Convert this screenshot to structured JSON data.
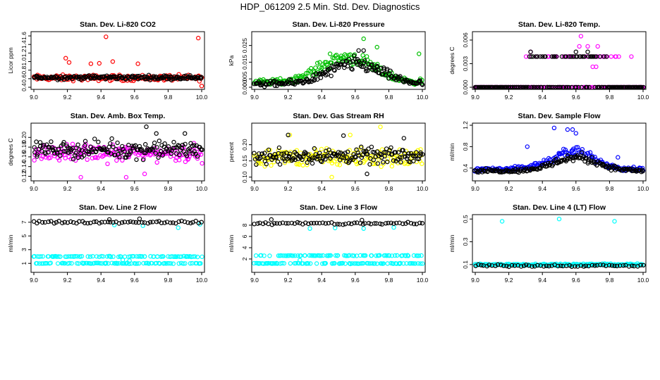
{
  "figure": {
    "title": "HDP_061209  2.5 Min. Std. Dev. Diagnostics",
    "x_ticks": [
      "9.0",
      "9.2",
      "9.4",
      "9.6",
      "9.8",
      "10.0"
    ]
  },
  "colors": {
    "black": "#000000",
    "red": "#ff0000",
    "green": "#00c000",
    "magenta": "#ff00ff",
    "yellow": "#ffff00",
    "blue": "#0000ff",
    "cyan": "#00ffff"
  },
  "chart_data": [
    {
      "type": "scatter",
      "title": "Stan. Dev. Li-820 CO2",
      "ylabel": "Licor ppm",
      "xlim": [
        9.0,
        10.0
      ],
      "ylim": [
        0.4,
        1.65
      ],
      "y_ticks": [
        0.4,
        0.6,
        0.8,
        1.0,
        1.2,
        1.4,
        1.6
      ],
      "y_tick_labels": [
        "0.4",
        "0.6",
        "0.8",
        "1.0",
        "1.2",
        "1.4",
        "1.6"
      ],
      "series": [
        {
          "name": "red",
          "color": "red",
          "pattern": "band",
          "y_base": 0.62,
          "y_spread": 0.1,
          "outliers": [
            [
              9.19,
              1.08
            ],
            [
              9.21,
              0.98
            ],
            [
              9.34,
              0.95
            ],
            [
              9.39,
              0.96
            ],
            [
              9.43,
              1.58
            ],
            [
              9.47,
              1.0
            ],
            [
              9.62,
              0.95
            ],
            [
              9.98,
              1.55
            ],
            [
              10.0,
              0.43
            ]
          ]
        },
        {
          "name": "black",
          "color": "black",
          "pattern": "band",
          "y_base": 0.63,
          "y_spread": 0.07
        }
      ]
    },
    {
      "type": "scatter",
      "title": "Stan. Dev. Li-820 Pressure",
      "ylabel": "kPa",
      "xlim": [
        9.0,
        10.0
      ],
      "ylim": [
        0.0,
        0.032
      ],
      "y_ticks": [
        0.0,
        0.005,
        0.015,
        0.025
      ],
      "y_tick_labels": [
        "0.000",
        "0.005",
        "0.015",
        "0.025"
      ],
      "series": [
        {
          "name": "green",
          "color": "green",
          "pattern": "hump",
          "y_base": 0.003,
          "y_peak": 0.015,
          "y_spread": 0.004,
          "x_center": 9.55,
          "x_width": 0.22,
          "outliers": [
            [
              9.65,
              0.029
            ],
            [
              9.73,
              0.024
            ],
            [
              9.98,
              0.02
            ],
            [
              9.45,
              0.02
            ]
          ]
        },
        {
          "name": "black",
          "color": "black",
          "pattern": "hump",
          "y_base": 0.002,
          "y_peak": 0.012,
          "y_spread": 0.004,
          "x_center": 9.6,
          "x_width": 0.22,
          "outliers": [
            [
              9.62,
              0.022
            ],
            [
              9.65,
              0.022
            ]
          ]
        }
      ]
    },
    {
      "type": "scatter",
      "title": "Stan. Dev. Li-820 Temp.",
      "ylabel": "degrees C",
      "xlim": [
        9.0,
        10.0
      ],
      "ylim": [
        0.0,
        0.0068
      ],
      "y_ticks": [
        0.0,
        0.003,
        0.006
      ],
      "y_tick_labels": [
        "0.000",
        "0.003",
        "0.006"
      ],
      "series": [
        {
          "name": "magenta",
          "color": "magenta",
          "pattern": "levels",
          "levels": [
            0.0,
            0.0039
          ],
          "level_range": [
            9.3,
            9.95
          ],
          "outliers": [
            [
              9.63,
              0.0065
            ],
            [
              9.7,
              0.0026
            ],
            [
              9.72,
              0.0026
            ],
            [
              9.33,
              0.0045
            ],
            [
              9.62,
              0.0052
            ],
            [
              9.67,
              0.0052
            ],
            [
              9.73,
              0.0052
            ]
          ]
        },
        {
          "name": "black",
          "color": "black",
          "pattern": "levels",
          "levels": [
            0.0,
            0.0039
          ],
          "level_range": [
            9.32,
            9.8
          ],
          "outliers": [
            [
              9.33,
              0.0045
            ],
            [
              9.6,
              0.0045
            ],
            [
              9.67,
              0.0045
            ]
          ]
        }
      ]
    },
    {
      "type": "scatter",
      "title": "Stan. Dev. Amb. Box Temp.",
      "ylabel": "degrees C",
      "xlim": [
        9.0,
        10.0
      ],
      "ylim": [
        0.115,
        0.225
      ],
      "y_ticks": [
        0.12,
        0.14,
        0.16,
        0.18,
        0.2
      ],
      "y_tick_labels": [
        "0.12",
        "0.14",
        "0.16",
        "0.18",
        "0.20"
      ],
      "series": [
        {
          "name": "magenta",
          "color": "magenta",
          "pattern": "band",
          "y_base": 0.168,
          "y_spread": 0.025,
          "outliers": [
            [
              9.28,
              0.118
            ],
            [
              9.55,
              0.118
            ],
            [
              9.66,
              0.125
            ]
          ]
        },
        {
          "name": "black",
          "color": "black",
          "pattern": "band",
          "y_base": 0.175,
          "y_spread": 0.025,
          "outliers": [
            [
              9.67,
              0.222
            ],
            [
              9.73,
              0.208
            ],
            [
              9.9,
              0.208
            ]
          ]
        }
      ]
    },
    {
      "type": "scatter",
      "title": "Stan. Dev. Gas Stream RH",
      "ylabel": "percent",
      "xlim": [
        9.0,
        10.0
      ],
      "ylim": [
        0.095,
        0.26
      ],
      "y_ticks": [
        0.1,
        0.15,
        0.2
      ],
      "y_tick_labels": [
        "0.10",
        "0.15",
        "0.20"
      ],
      "series": [
        {
          "name": "yellow",
          "color": "yellow",
          "pattern": "band",
          "y_base": 0.16,
          "y_spread": 0.04,
          "outliers": [
            [
              9.75,
              0.255
            ],
            [
              9.46,
              0.1
            ],
            [
              9.21,
              0.23
            ],
            [
              9.57,
              0.23
            ]
          ]
        },
        {
          "name": "black",
          "color": "black",
          "pattern": "band",
          "y_base": 0.165,
          "y_spread": 0.035,
          "outliers": [
            [
              9.2,
              0.23
            ],
            [
              9.53,
              0.228
            ],
            [
              9.89,
              0.22
            ],
            [
              9.67,
              0.11
            ]
          ]
        }
      ]
    },
    {
      "type": "scatter",
      "title": "Stan. Dev. Sample Flow",
      "ylabel": "ml/min",
      "xlim": [
        9.0,
        10.0
      ],
      "ylim": [
        0.2,
        1.2
      ],
      "y_ticks": [
        0.4,
        0.8,
        1.2
      ],
      "y_tick_labels": [
        "0.4",
        "0.8",
        "1.2"
      ],
      "series": [
        {
          "name": "blue",
          "color": "blue",
          "pattern": "hump",
          "y_base": 0.38,
          "y_peak": 0.32,
          "y_spread": 0.09,
          "x_center": 9.58,
          "x_width": 0.18,
          "outliers": [
            [
              9.47,
              1.15
            ],
            [
              9.55,
              1.12
            ],
            [
              9.58,
              1.12
            ],
            [
              9.6,
              1.05
            ],
            [
              9.31,
              0.8
            ],
            [
              9.85,
              0.6
            ]
          ]
        },
        {
          "name": "black",
          "color": "black",
          "pattern": "hump",
          "y_base": 0.35,
          "y_spread": 0.08,
          "y_peak": 0.25,
          "x_center": 9.6,
          "x_width": 0.18
        }
      ]
    },
    {
      "type": "scatter",
      "title": "Stan. Dev. Line 2 Flow",
      "ylabel": "ml/min",
      "xlim": [
        9.0,
        10.0
      ],
      "ylim": [
        0.0,
        7.8
      ],
      "y_ticks": [
        1,
        3,
        5,
        7
      ],
      "y_tick_labels": [
        "1",
        "3",
        "5",
        "7"
      ],
      "series": [
        {
          "name": "cyan",
          "color": "cyan",
          "pattern": "levels",
          "levels": [
            1.0,
            2.0
          ],
          "level_range": [
            9.0,
            10.0
          ],
          "outliers": [
            [
              9.48,
              6.6
            ],
            [
              9.65,
              6.5
            ],
            [
              9.86,
              6.2
            ],
            [
              9.99,
              6.7
            ],
            [
              9.53,
              1.5
            ],
            [
              9.57,
              1.4
            ]
          ]
        },
        {
          "name": "black",
          "color": "black",
          "pattern": "band",
          "y_base": 7.0,
          "y_spread": 0.25,
          "sparse": true,
          "outliers": [
            [
              9.45,
              7.4
            ],
            [
              9.63,
              7.5
            ]
          ]
        }
      ]
    },
    {
      "type": "scatter",
      "title": "Stan. Dev. Line 3 Flow",
      "ylabel": "ml/min",
      "xlim": [
        9.0,
        10.0
      ],
      "ylim": [
        0.0,
        9.5
      ],
      "y_ticks": [
        2,
        4,
        6,
        8
      ],
      "y_tick_labels": [
        "2",
        "4",
        "6",
        "8"
      ],
      "series": [
        {
          "name": "cyan",
          "color": "cyan",
          "pattern": "levels",
          "levels": [
            1.2,
            2.6
          ],
          "level_range": [
            9.0,
            10.0
          ],
          "outliers": [
            [
              9.33,
              7.4
            ],
            [
              9.48,
              7.5
            ],
            [
              9.65,
              7.4
            ],
            [
              9.83,
              7.6
            ],
            [
              9.27,
              1.8
            ]
          ]
        },
        {
          "name": "black",
          "color": "black",
          "pattern": "band",
          "y_base": 8.3,
          "y_spread": 0.35,
          "sparse": true,
          "outliers": [
            [
              9.1,
              9.0
            ],
            [
              9.64,
              8.9
            ]
          ]
        }
      ]
    },
    {
      "type": "scatter",
      "title": "Stan. Dev. Line 4 (LT) Flow",
      "ylabel": "ml/min",
      "xlim": [
        9.0,
        10.0
      ],
      "ylim": [
        0.05,
        0.52
      ],
      "y_ticks": [
        0.1,
        0.3,
        0.5
      ],
      "y_tick_labels": [
        "0.1",
        "0.3",
        "0.5"
      ],
      "series": [
        {
          "name": "cyan",
          "color": "cyan",
          "pattern": "band",
          "y_base": 0.1,
          "y_spread": 0.012,
          "outliers": [
            [
              9.16,
              0.48
            ],
            [
              9.5,
              0.5
            ],
            [
              9.83,
              0.48
            ]
          ]
        },
        {
          "name": "black",
          "color": "black",
          "pattern": "band",
          "y_base": 0.09,
          "y_spread": 0.012,
          "sparse": true
        }
      ]
    }
  ]
}
